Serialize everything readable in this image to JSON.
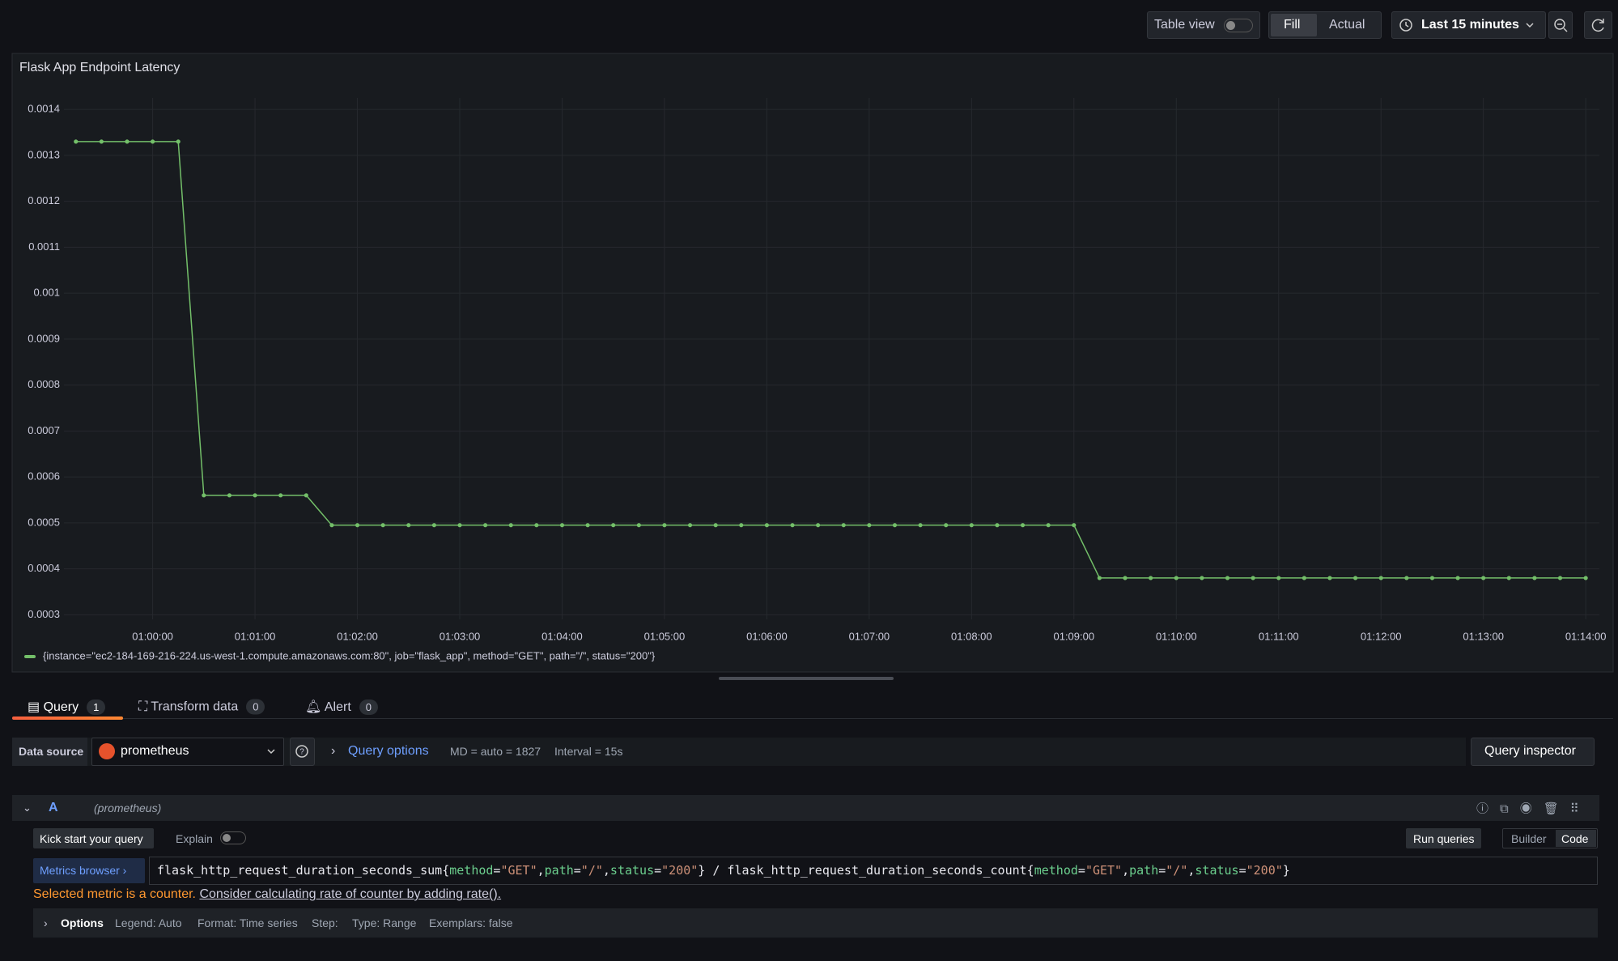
{
  "toolbar": {
    "table_view": "Table view",
    "fill": "Fill",
    "actual": "Actual",
    "time_range": "Last 15 minutes"
  },
  "chart_data": {
    "type": "line",
    "title": "Flask App Endpoint Latency",
    "x": [
      "00:59:15",
      "00:59:30",
      "00:59:45",
      "01:00:00",
      "01:00:15",
      "01:00:30",
      "01:00:45",
      "01:01:00",
      "01:01:15",
      "01:01:30",
      "01:01:45",
      "01:02:00",
      "01:02:15",
      "01:02:30",
      "01:02:45",
      "01:03:00",
      "01:03:15",
      "01:03:30",
      "01:03:45",
      "01:04:00",
      "01:04:15",
      "01:04:30",
      "01:04:45",
      "01:05:00",
      "01:05:15",
      "01:05:30",
      "01:05:45",
      "01:06:00",
      "01:06:15",
      "01:06:30",
      "01:06:45",
      "01:07:00",
      "01:07:15",
      "01:07:30",
      "01:07:45",
      "01:08:00",
      "01:08:15",
      "01:08:30",
      "01:08:45",
      "01:09:00",
      "01:09:15",
      "01:09:30",
      "01:09:45",
      "01:10:00",
      "01:10:15",
      "01:10:30",
      "01:10:45",
      "01:11:00",
      "01:11:15",
      "01:11:30",
      "01:11:45",
      "01:12:00",
      "01:12:15",
      "01:12:30",
      "01:12:45",
      "01:13:00",
      "01:13:15",
      "01:13:30",
      "01:13:45",
      "01:14:00"
    ],
    "series": [
      {
        "name": "{instance=\"ec2-184-169-216-224.us-west-1.compute.amazonaws.com:80\", job=\"flask_app\", method=\"GET\", path=\"/\", status=\"200\"}",
        "color": "#73bf69",
        "values": [
          0.00133,
          0.00133,
          0.00133,
          0.00133,
          0.00133,
          0.00056,
          0.00056,
          0.00056,
          0.00056,
          0.00056,
          0.000495,
          0.000495,
          0.000495,
          0.000495,
          0.000495,
          0.000495,
          0.000495,
          0.000495,
          0.000495,
          0.000495,
          0.000495,
          0.000495,
          0.000495,
          0.000495,
          0.000495,
          0.000495,
          0.000495,
          0.000495,
          0.000495,
          0.000495,
          0.000495,
          0.000495,
          0.000495,
          0.000495,
          0.000495,
          0.000495,
          0.000495,
          0.000495,
          0.000495,
          0.000495,
          0.00038,
          0.00038,
          0.00038,
          0.00038,
          0.00038,
          0.00038,
          0.00038,
          0.00038,
          0.00038,
          0.00038,
          0.00038,
          0.00038,
          0.00038,
          0.00038,
          0.00038,
          0.00038,
          0.00038,
          0.00038,
          0.00038,
          0.00038
        ]
      }
    ],
    "xlim": [
      "00:59:08",
      "01:14:08"
    ],
    "xticks": [
      "01:00:00",
      "01:01:00",
      "01:02:00",
      "01:03:00",
      "01:04:00",
      "01:05:00",
      "01:06:00",
      "01:07:00",
      "01:08:00",
      "01:09:00",
      "01:10:00",
      "01:11:00",
      "01:12:00",
      "01:13:00",
      "01:14:00"
    ],
    "ylim": [
      0.00029,
      0.001425
    ],
    "yticks": [
      0.0003,
      0.0004,
      0.0005,
      0.0006,
      0.0007,
      0.0008,
      0.0009,
      0.001,
      0.0011,
      0.0012,
      0.0013,
      0.0014
    ],
    "grid": true
  },
  "tabs": [
    {
      "label": "Query",
      "count": 1
    },
    {
      "label": "Transform data",
      "count": 0
    },
    {
      "label": "Alert",
      "count": 0
    }
  ],
  "query_bar": {
    "data_source_label": "Data source",
    "data_source": "prometheus",
    "query_options": "Query options",
    "max_data_points": "MD = auto = 1827",
    "interval": "Interval = 15s",
    "query_inspector": "Query inspector"
  },
  "query": {
    "ref_id": "A",
    "datasource_hint": "(prometheus)",
    "kick_start": "Kick start your query",
    "explain": "Explain",
    "run_queries": "Run queries",
    "builder": "Builder",
    "code": "Code",
    "metrics_browser": "Metrics browser",
    "expression": [
      "flask_http_request_duration_seconds_sum{",
      "method",
      "=",
      "\"GET\"",
      ",",
      "path",
      "=",
      "\"/\"",
      ",",
      "status",
      "=",
      "\"200\"",
      "} / flask_http_request_duration_seconds_count{",
      "method",
      "=",
      "\"GET\"",
      ",",
      "path",
      "=",
      "\"/\"",
      ",",
      "status",
      "=",
      "\"200\"",
      "}"
    ],
    "warning": "Selected metric is a counter.",
    "warning_link": "Consider calculating rate of counter by adding rate().",
    "options_label": "Options",
    "options": [
      "Legend: Auto",
      "Format: Time series",
      "Step:",
      "Type: Range",
      "Exemplars: false"
    ]
  }
}
